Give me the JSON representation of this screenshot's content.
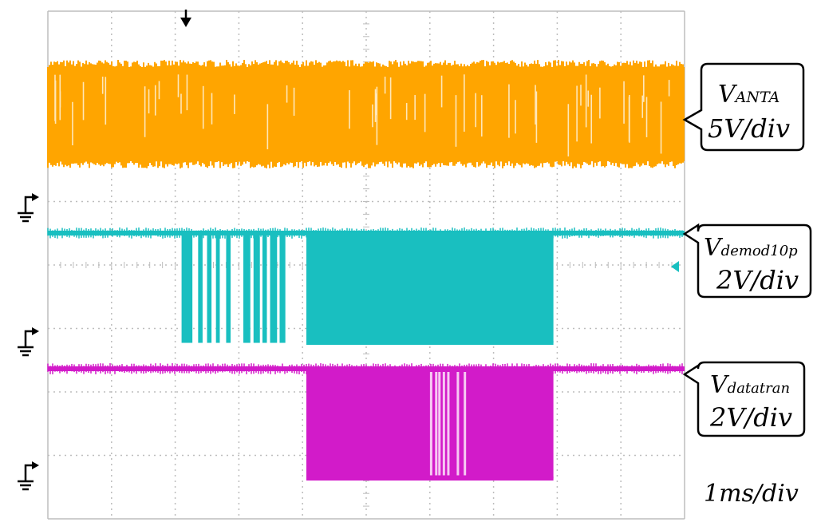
{
  "chart_data": {
    "type": "line",
    "title": "",
    "xlabel": "",
    "ylabel": "",
    "timebase": "1ms/div",
    "divisions": {
      "x": 10,
      "y": 8
    },
    "grid": true,
    "colors": {
      "VANTA": "#FFA500",
      "Vdemod10p": "#19BFC0",
      "Vdatatran": "#D21BC9",
      "grid": "#bdbdbd"
    },
    "series": [
      {
        "name": "V_ANTA",
        "name_main": "V",
        "name_sub": "ANTA",
        "scale": "5V/div",
        "signal": "continuous carrier",
        "color": "#FFA500"
      },
      {
        "name": "V_demod10p",
        "name_main": "V",
        "name_sub": "demod10p",
        "scale": "2V/div",
        "color": "#19BFC0",
        "high_level_div": 0,
        "low_level_div": -1.73,
        "low_pulses_div": [
          [
            2.1,
            2.27
          ],
          [
            2.36,
            2.43
          ],
          [
            2.5,
            2.57
          ],
          [
            2.64,
            2.7
          ],
          [
            2.8,
            2.87
          ],
          [
            3.07,
            3.18
          ],
          [
            3.23,
            3.33
          ],
          [
            3.37,
            3.44
          ],
          [
            3.49,
            3.6
          ],
          [
            3.64,
            3.73
          ]
        ],
        "burst_div": [
          4.06,
          7.94
        ]
      },
      {
        "name": "V_datatran",
        "name_main": "V",
        "name_sub": "datatran",
        "scale": "2V/div",
        "color": "#D21BC9",
        "high_level_div": 0,
        "low_level_div": -1.73,
        "burst_div": [
          4.06,
          7.94
        ],
        "gaps_in_burst_div": [
          6.02,
          6.1,
          6.15,
          6.22,
          6.29,
          6.44,
          6.55
        ]
      }
    ]
  }
}
